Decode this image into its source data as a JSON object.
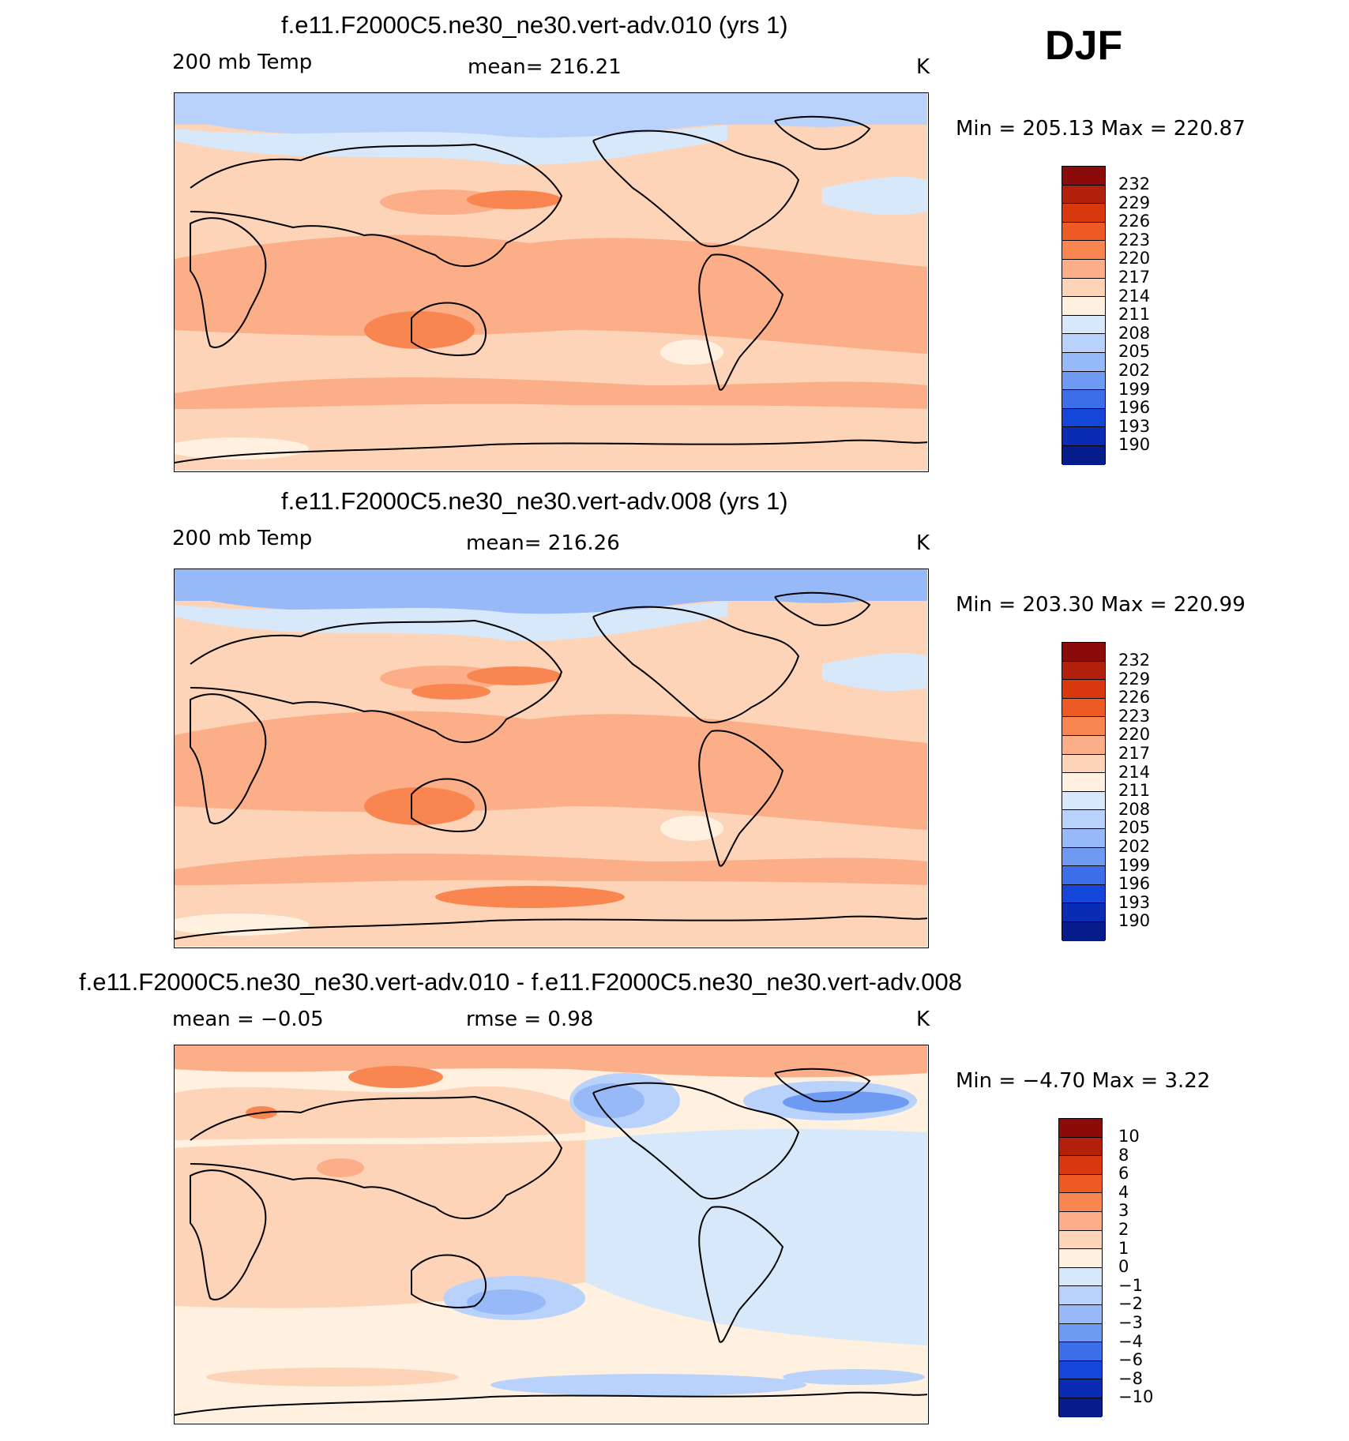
{
  "season": "DJF",
  "panels": [
    {
      "title": "f.e11.F2000C5.ne30_ne30.vert-adv.010 (yrs 1)",
      "left_label": "200 mb Temp",
      "center_label": "mean=  216.21",
      "units": "K",
      "minmax": "Min  =  205.13  Max  =  220.87",
      "colorbar": {
        "labels": [
          "232",
          "229",
          "226",
          "223",
          "220",
          "217",
          "214",
          "211",
          "208",
          "205",
          "202",
          "199",
          "196",
          "193",
          "190"
        ],
        "colors": [
          "#8b0a0a",
          "#b2200c",
          "#d9380e",
          "#ee5a24",
          "#f98650",
          "#fbae88",
          "#fdd4b8",
          "#fff0e0",
          "#d8e8fb",
          "#b9d2fb",
          "#97b9f8",
          "#6e9af2",
          "#3b6ee8",
          "#1446d9",
          "#0a2cb4",
          "#061c8a"
        ]
      },
      "field": "temp1"
    },
    {
      "title": "f.e11.F2000C5.ne30_ne30.vert-adv.008 (yrs 1)",
      "left_label": "200 mb Temp",
      "center_label": "mean=  216.26",
      "units": "K",
      "minmax": "Min  =  203.30  Max  =  220.99",
      "colorbar": {
        "labels": [
          "232",
          "229",
          "226",
          "223",
          "220",
          "217",
          "214",
          "211",
          "208",
          "205",
          "202",
          "199",
          "196",
          "193",
          "190"
        ],
        "colors": [
          "#8b0a0a",
          "#b2200c",
          "#d9380e",
          "#ee5a24",
          "#f98650",
          "#fbae88",
          "#fdd4b8",
          "#fff0e0",
          "#d8e8fb",
          "#b9d2fb",
          "#97b9f8",
          "#6e9af2",
          "#3b6ee8",
          "#1446d9",
          "#0a2cb4",
          "#061c8a"
        ]
      },
      "field": "temp2"
    },
    {
      "title": "f.e11.F2000C5.ne30_ne30.vert-adv.010 - f.e11.F2000C5.ne30_ne30.vert-adv.008",
      "left_label": "mean  =     −0.05",
      "center_label": "rmse  =      0.98",
      "units": "K",
      "minmax": "Min  =    −4.70  Max  =      3.22",
      "colorbar": {
        "labels": [
          "10",
          "8",
          "6",
          "4",
          "3",
          "2",
          "1",
          "0",
          "−1",
          "−2",
          "−3",
          "−4",
          "−6",
          "−8",
          "−10"
        ],
        "colors": [
          "#8b0a0a",
          "#b2200c",
          "#d9380e",
          "#ee5a24",
          "#f98650",
          "#fbae88",
          "#fdd4b8",
          "#fff0e0",
          "#d8e8fb",
          "#b9d2fb",
          "#97b9f8",
          "#6e9af2",
          "#3b6ee8",
          "#1446d9",
          "#0a2cb4",
          "#061c8a"
        ]
      },
      "field": "diff"
    }
  ]
}
